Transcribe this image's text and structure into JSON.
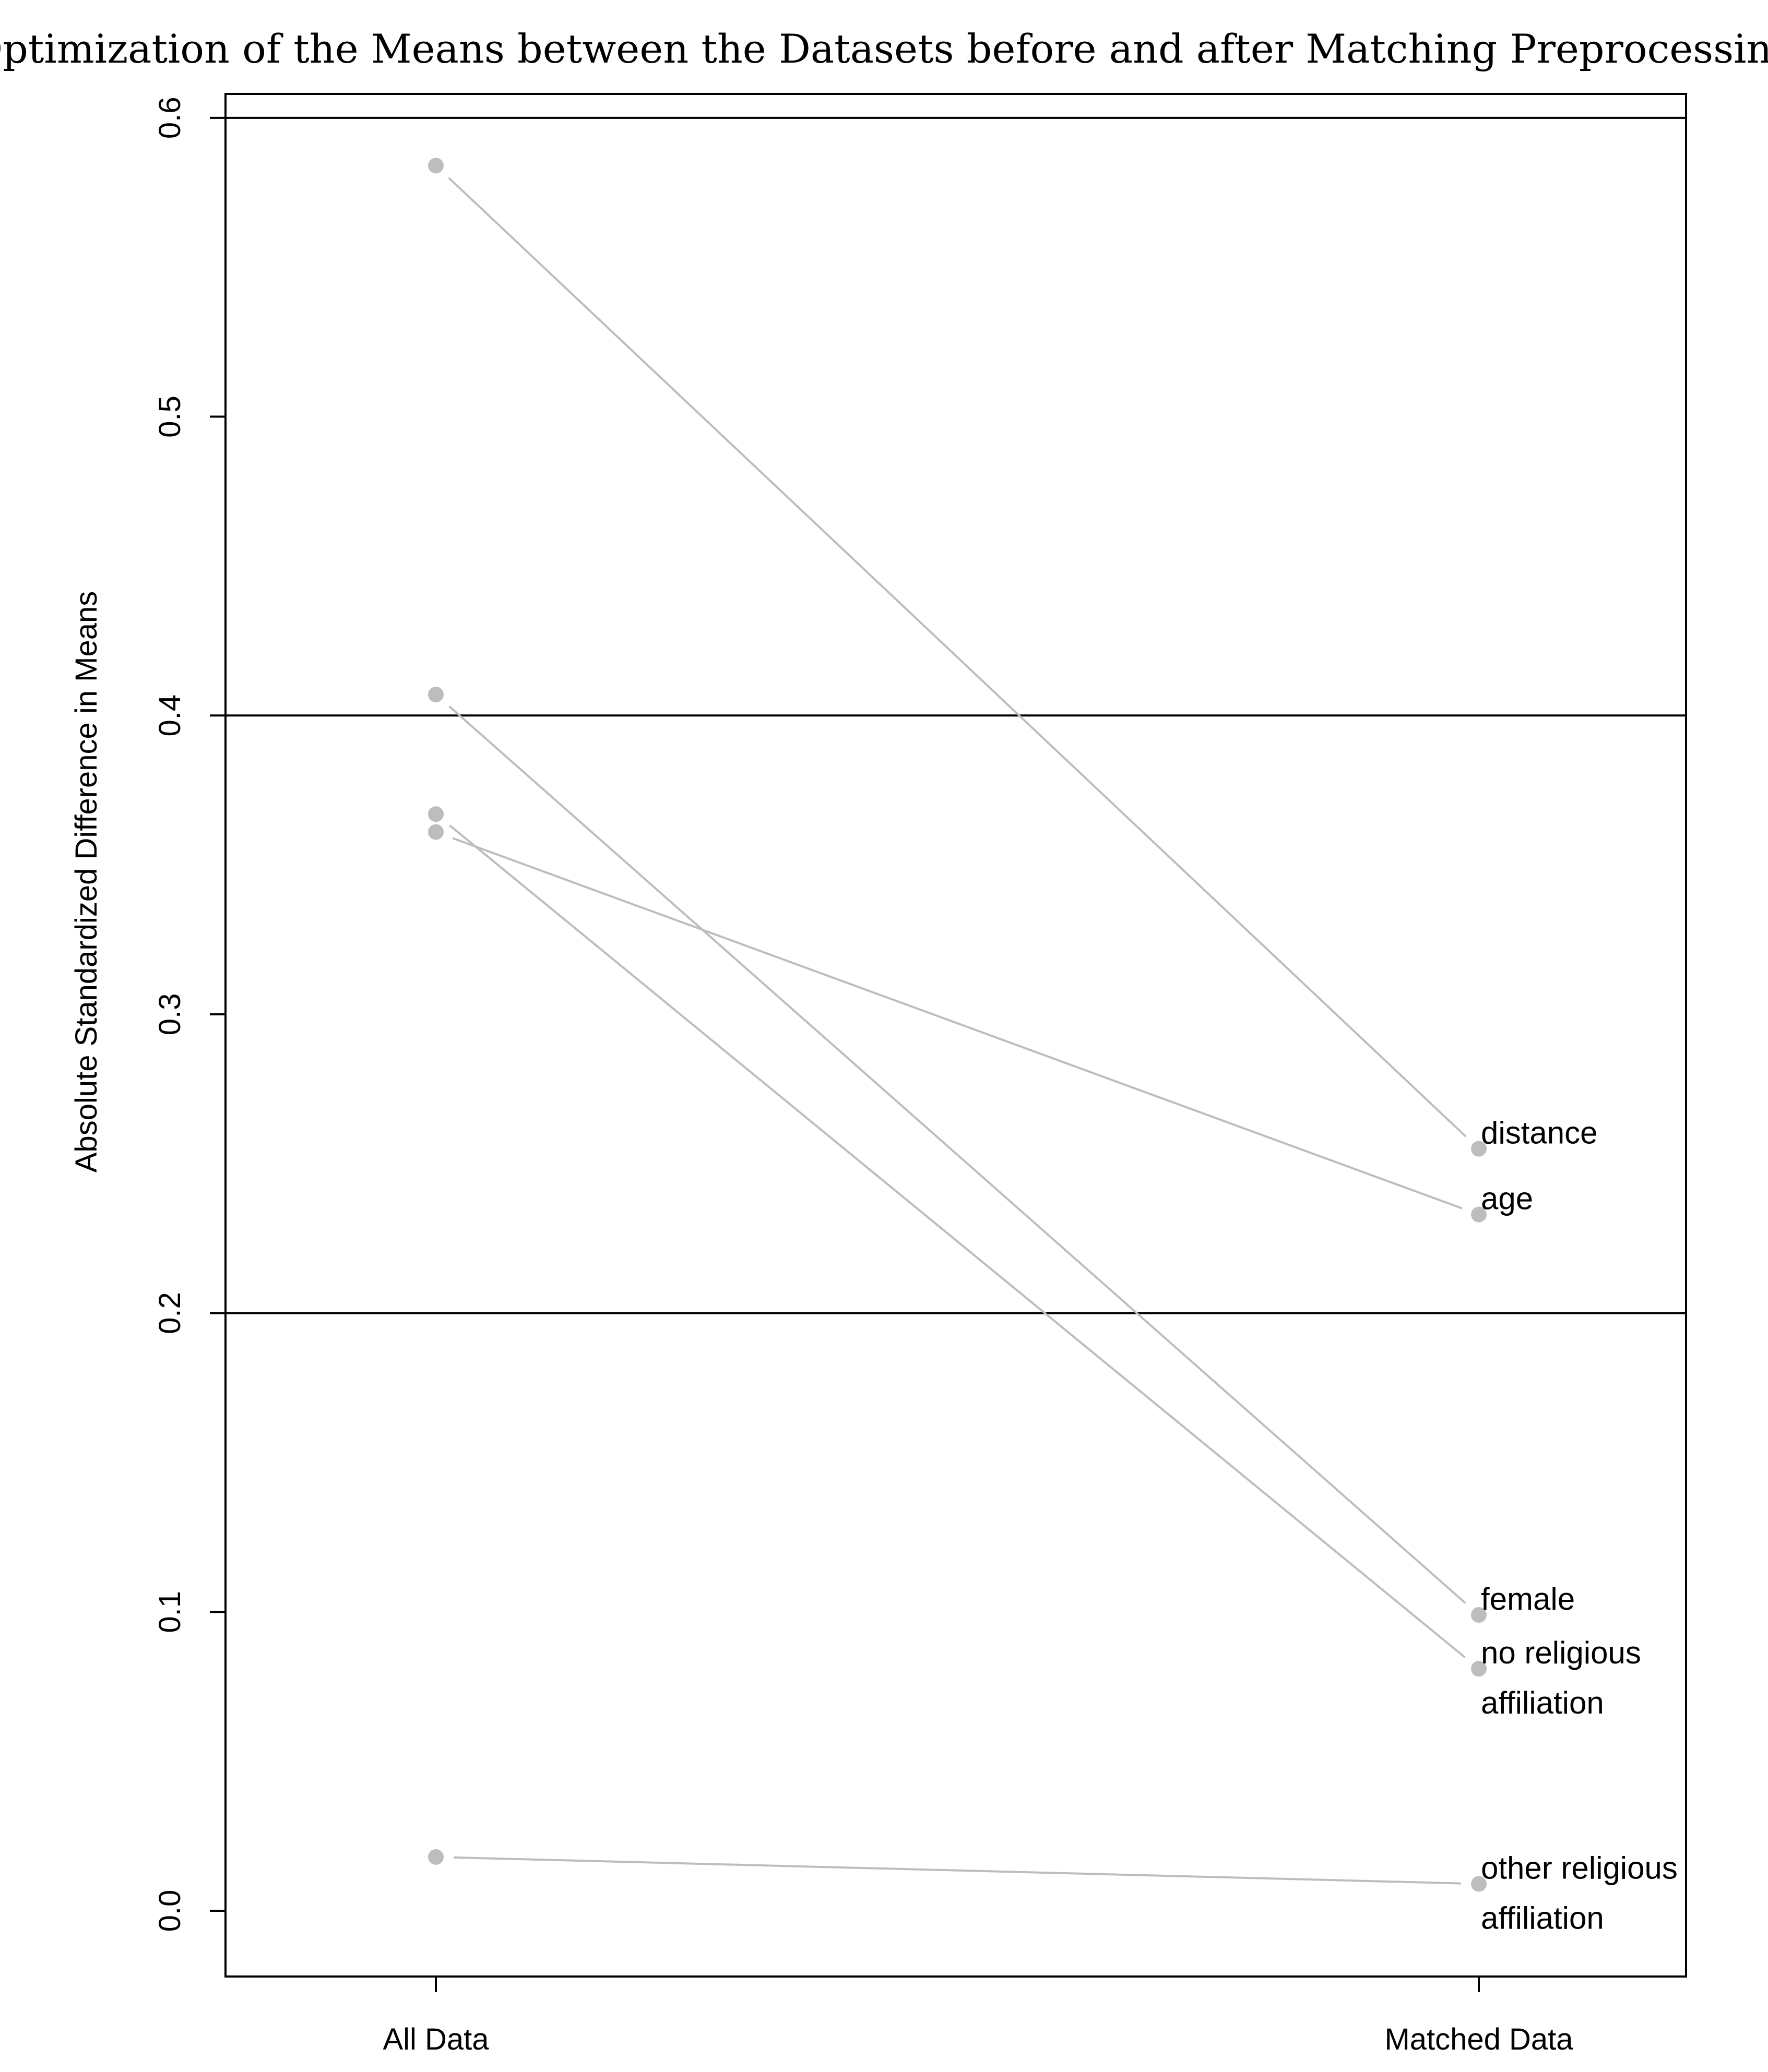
{
  "chart_data": {
    "type": "line",
    "title": "Optimization of the Means between the Datasets before and after Matching Preprocessing",
    "xlabel": "",
    "ylabel": "Absolute Standardized Difference in Means",
    "categories": [
      "All Data",
      "Matched Data"
    ],
    "ylim": [
      -0.022,
      0.608
    ],
    "yticks": [
      0.0,
      0.1,
      0.2,
      0.3,
      0.4,
      0.5,
      0.6
    ],
    "ytick_labels": [
      "0.0",
      "0.1",
      "0.2",
      "0.3",
      "0.4",
      "0.5",
      "0.6"
    ],
    "reference_lines": [
      0.2,
      0.4,
      0.6
    ],
    "grid": false,
    "colors": {
      "series": "#bdbdbd",
      "axis": "#000000",
      "reference": "#000000"
    },
    "series": [
      {
        "name": "distance",
        "label_lines": [
          "distance"
        ],
        "values": [
          0.584,
          0.255
        ]
      },
      {
        "name": "age",
        "label_lines": [
          "age"
        ],
        "values": [
          0.361,
          0.233
        ]
      },
      {
        "name": "female",
        "label_lines": [
          "female"
        ],
        "values": [
          0.407,
          0.099
        ]
      },
      {
        "name": "no religious affiliation",
        "label_lines": [
          "no religious",
          "affiliation"
        ],
        "values": [
          0.367,
          0.081
        ]
      },
      {
        "name": "other religious affiliation",
        "label_lines": [
          "other religious",
          "affiliation"
        ],
        "values": [
          0.018,
          0.009
        ]
      }
    ]
  }
}
